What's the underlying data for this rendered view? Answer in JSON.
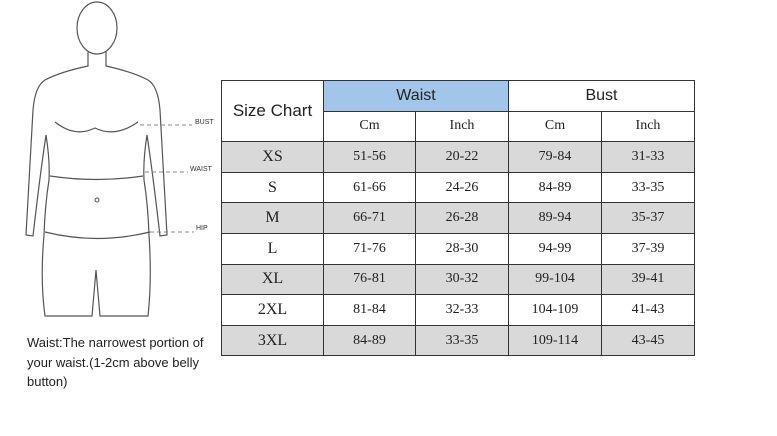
{
  "figure": {
    "labels": [
      "BUST",
      "WAIST",
      "HIP"
    ]
  },
  "note": "Waist:The narrowest portion of your waist.(1-2cm above belly button)",
  "table": {
    "title": "Size Chart",
    "groups": [
      "Waist",
      "Bust"
    ],
    "units": [
      "Cm",
      "Inch",
      "Cm",
      "Inch"
    ],
    "rows": [
      [
        "XS",
        "51-56",
        "20-22",
        "79-84",
        "31-33"
      ],
      [
        "S",
        "61-66",
        "24-26",
        "84-89",
        "33-35"
      ],
      [
        "M",
        "66-71",
        "26-28",
        "89-94",
        "35-37"
      ],
      [
        "L",
        "71-76",
        "28-30",
        "94-99",
        "37-39"
      ],
      [
        "XL",
        "76-81",
        "30-32",
        "99-104",
        "39-41"
      ],
      [
        "2XL",
        "81-84",
        "32-33",
        "104-109",
        "41-43"
      ],
      [
        "3XL",
        "84-89",
        "33-35",
        "109-114",
        "43-45"
      ]
    ]
  }
}
